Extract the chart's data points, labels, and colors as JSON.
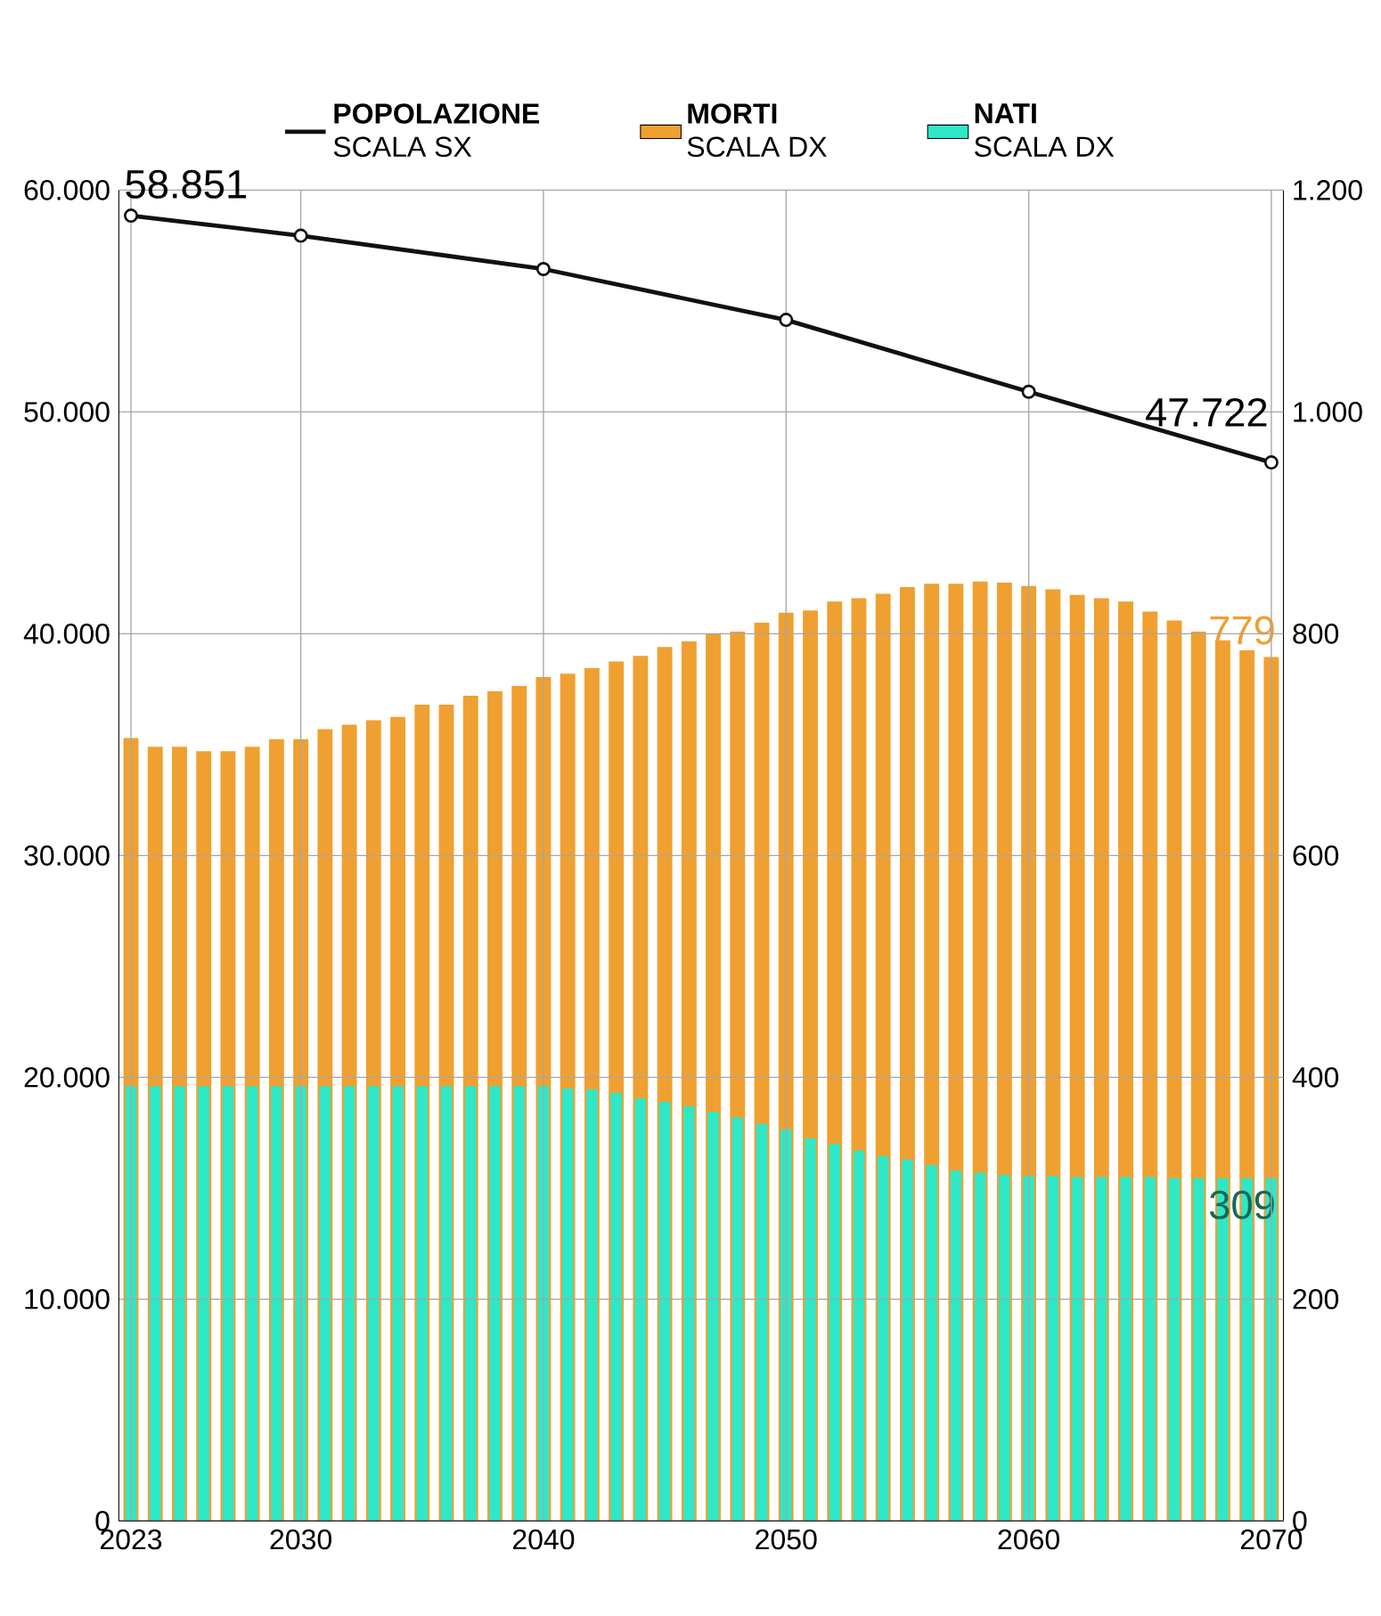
{
  "chart_data": {
    "type": "bar",
    "x": [
      2023,
      2024,
      2025,
      2026,
      2027,
      2028,
      2029,
      2030,
      2031,
      2032,
      2033,
      2034,
      2035,
      2036,
      2037,
      2038,
      2039,
      2040,
      2041,
      2042,
      2043,
      2044,
      2045,
      2046,
      2047,
      2048,
      2049,
      2050,
      2051,
      2052,
      2053,
      2054,
      2055,
      2056,
      2057,
      2058,
      2059,
      2060,
      2061,
      2062,
      2063,
      2064,
      2065,
      2066,
      2067,
      2068,
      2069,
      2070
    ],
    "series": [
      {
        "name": "POPOLAZIONE",
        "type": "line",
        "axis": "y",
        "color": "#111111",
        "x": [
          2023,
          2030,
          2040,
          2050,
          2060,
          2070
        ],
        "values": [
          58851,
          57945,
          56443,
          54150,
          50909,
          47722
        ],
        "value_labels": [
          "58.851",
          null,
          null,
          null,
          null,
          "47.722"
        ]
      },
      {
        "name": "MORTI",
        "axis": "y2",
        "color": "#f0a030",
        "values": [
          706,
          698,
          698,
          694,
          694,
          698,
          705,
          705,
          714,
          718,
          722,
          725,
          736,
          736,
          744,
          748,
          753,
          761,
          764,
          769,
          775,
          780,
          788,
          793,
          800,
          802,
          810,
          819,
          821,
          829,
          832,
          836,
          842,
          845,
          845,
          847,
          846,
          843,
          840,
          835,
          832,
          829,
          820,
          812,
          802,
          794,
          785,
          779
        ],
        "value_labels": [
          null,
          null,
          null,
          null,
          null,
          null,
          null,
          null,
          null,
          null,
          null,
          null,
          null,
          null,
          null,
          null,
          null,
          null,
          null,
          null,
          null,
          null,
          null,
          null,
          null,
          null,
          null,
          null,
          null,
          null,
          null,
          null,
          null,
          null,
          null,
          null,
          null,
          null,
          null,
          null,
          null,
          null,
          null,
          null,
          null,
          null,
          null,
          "779"
        ]
      },
      {
        "name": "NATI",
        "axis": "y2",
        "color": "#2ee8c8",
        "values": [
          392,
          392,
          392,
          392,
          392,
          392,
          392,
          392,
          392,
          392,
          392,
          392,
          392,
          392,
          392,
          392,
          392,
          392,
          390,
          389,
          386,
          381,
          378,
          374,
          369,
          364,
          358,
          353,
          345,
          340,
          334,
          329,
          326,
          321,
          316,
          314,
          312,
          311,
          311,
          310,
          310,
          310,
          310,
          309,
          309,
          309,
          309,
          309
        ],
        "value_labels": [
          null,
          null,
          null,
          null,
          null,
          null,
          null,
          null,
          null,
          null,
          null,
          null,
          null,
          null,
          null,
          null,
          null,
          null,
          null,
          null,
          null,
          null,
          null,
          null,
          null,
          null,
          null,
          null,
          null,
          null,
          null,
          null,
          null,
          null,
          null,
          null,
          null,
          null,
          null,
          null,
          null,
          null,
          null,
          null,
          null,
          null,
          null,
          "309"
        ]
      }
    ],
    "annotations": [
      "SCALA SX",
      "SCALA DX",
      "SCALA DX"
    ],
    "xlim": [
      2022.5,
      2070.5
    ],
    "xticks": [
      2023,
      2030,
      2040,
      2050,
      2060,
      2070
    ],
    "ylim": [
      0,
      60000
    ],
    "yticks": [
      0,
      {
        "value": 10000,
        "label": "10.000"
      },
      {
        "value": 20000,
        "label": "20.000"
      },
      {
        "value": 30000,
        "label": "30.000"
      },
      {
        "value": 40000,
        "label": "40.000"
      },
      {
        "value": 50000,
        "label": "50.000"
      },
      {
        "value": 60000,
        "label": "60.000"
      }
    ],
    "y2lim": [
      0,
      1200
    ],
    "y2ticks": [
      0,
      200,
      400,
      600,
      800,
      {
        "value": 1000,
        "label": "1.000"
      },
      {
        "value": 1200,
        "label": "1.200"
      }
    ],
    "grid": true,
    "legend": "top",
    "marker": "circle"
  }
}
